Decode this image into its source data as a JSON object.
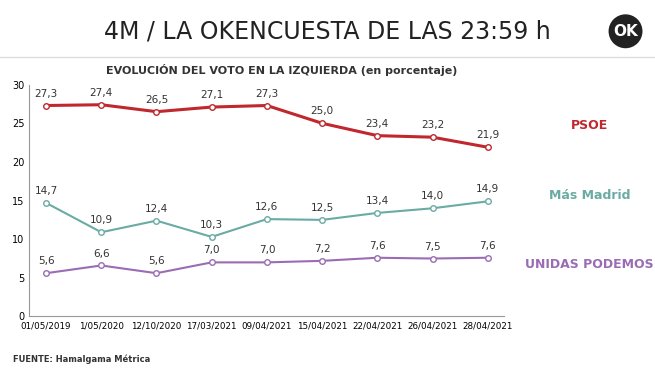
{
  "chart_data": {
    "type": "line",
    "header": "4M / LA OKENCUESTA DE LAS 23:59 h",
    "logo": "OK",
    "title": "EVOLUCIÓN DEL VOTO EN LA IZQUIERDA (en porcentaje)",
    "source": "FUENTE: Hamalgama Métrica",
    "categories": [
      "01/05/2019",
      "1/05/2020",
      "12/10/2020",
      "17/03/2021",
      "09/04/2021",
      "15/04/2021",
      "22/04/2021",
      "26/04/2021",
      "28/04/2021"
    ],
    "series": [
      {
        "name": "PSOE",
        "color": "#c0282d",
        "marker": "o",
        "values": [
          27.3,
          27.4,
          26.5,
          27.1,
          27.3,
          25.0,
          23.4,
          23.2,
          21.9
        ],
        "value_labels": [
          "27,3",
          "27,4",
          "26,5",
          "27,1",
          "27,3",
          "25,0",
          "23,4",
          "23,2",
          "21,9"
        ]
      },
      {
        "name": "Más Madrid",
        "color": "#6aaba4",
        "marker": "o",
        "values": [
          14.7,
          10.9,
          12.4,
          10.3,
          12.6,
          12.5,
          13.4,
          14.0,
          14.9
        ],
        "value_labels": [
          "14,7",
          "10,9",
          "12,4",
          "10,3",
          "12,6",
          "12,5",
          "13,4",
          "14,0",
          "14,9"
        ]
      },
      {
        "name": "UNIDAS PODEMOS",
        "color": "#9a6cb4",
        "marker": "o",
        "values": [
          5.6,
          6.6,
          5.6,
          7.0,
          7.0,
          7.2,
          7.6,
          7.5,
          7.6
        ],
        "value_labels": [
          "5,6",
          "6,6",
          "5,6",
          "7,0",
          "7,0",
          "7,2",
          "7,6",
          "7,5",
          "7,6"
        ]
      }
    ],
    "ylim": [
      0,
      30
    ],
    "yticks": [
      0,
      5,
      10,
      15,
      20,
      25,
      30
    ],
    "grid": false,
    "data_labels": true
  }
}
